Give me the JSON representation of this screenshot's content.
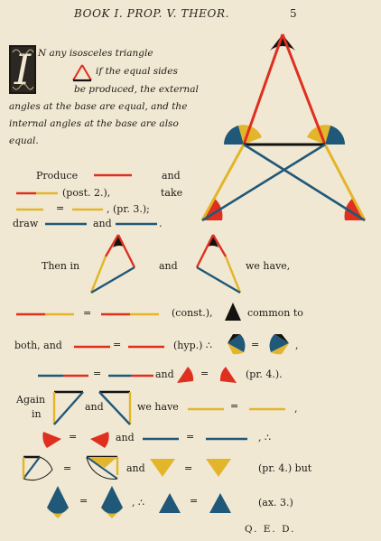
{
  "header": {
    "title": "BOOK I.  PROP. V.  THEOR.",
    "page_number": "5"
  },
  "initial_letter": "I",
  "proposition": {
    "line1": "N any isosceles triangle",
    "line2": "if the equal sides",
    "line3": "be produced, the external",
    "line4": "angles at the base are equal, and the",
    "line5": "internal angles at the base are also",
    "line6": "equal."
  },
  "steps": {
    "produce": "Produce",
    "and": "and",
    "post2": "(post. 2.),",
    "take": "take",
    "pr3": ", (pr. 3.);",
    "draw": "draw",
    "then_in": "Then in",
    "we_have": "we have,",
    "const": "(const.),",
    "common_to": "common to",
    "both_and": "both, and",
    "hyp": "(hyp.) ∴",
    "comma": ",",
    "pr4": "(pr. 4.).",
    "again": "Again",
    "in": "in",
    "and_we_have": "we have",
    "therefore": ", ∴",
    "pr4_but": "(pr. 4.) but",
    "ax3": "(ax. 3.)",
    "equals": "="
  },
  "qed": "Q. E. D.",
  "colors": {
    "red": "#de2f1f",
    "yellow": "#e3b52a",
    "blue": "#1f5878",
    "black": "#141210",
    "paper": "#f1e8d3"
  }
}
